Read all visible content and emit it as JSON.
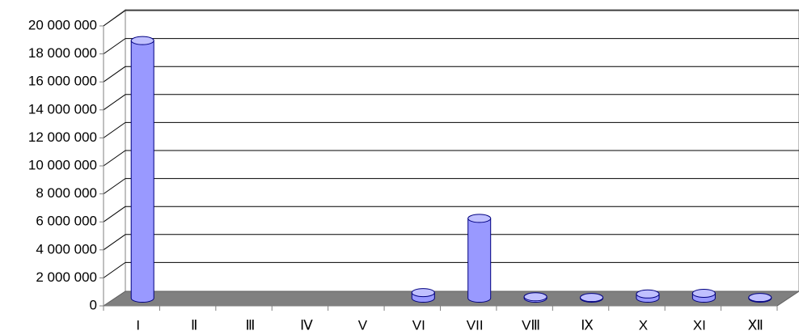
{
  "chart_data": {
    "type": "bar3d",
    "categories": [
      "I",
      "Ⅱ",
      "Ⅲ",
      "Ⅳ",
      "V",
      "VI",
      "VII",
      "VⅢ",
      "Ⅸ",
      "X",
      "XI",
      "Ⅻ"
    ],
    "values": [
      18400000,
      0,
      0,
      0,
      0,
      400000,
      5700000,
      100000,
      50000,
      300000,
      350000,
      50000
    ],
    "color": "#9999ff",
    "ylim": [
      0,
      20000000
    ],
    "yticks": [
      0,
      {
        "value": 2000000,
        "label": "2 000 000"
      },
      {
        "value": 4000000,
        "label": "4 000 000"
      },
      {
        "value": 6000000,
        "label": "6 000 000"
      },
      {
        "value": 8000000,
        "label": "8 000 000"
      },
      {
        "value": 10000000,
        "label": "10 000 000"
      },
      {
        "value": 12000000,
        "label": "12 000 000"
      },
      {
        "value": 14000000,
        "label": "14 000 000"
      },
      {
        "value": 16000000,
        "label": "16 000 000"
      },
      {
        "value": 18000000,
        "label": "18 000 000"
      },
      {
        "value": 20000000,
        "label": "20 000 000"
      }
    ],
    "grid": true
  }
}
